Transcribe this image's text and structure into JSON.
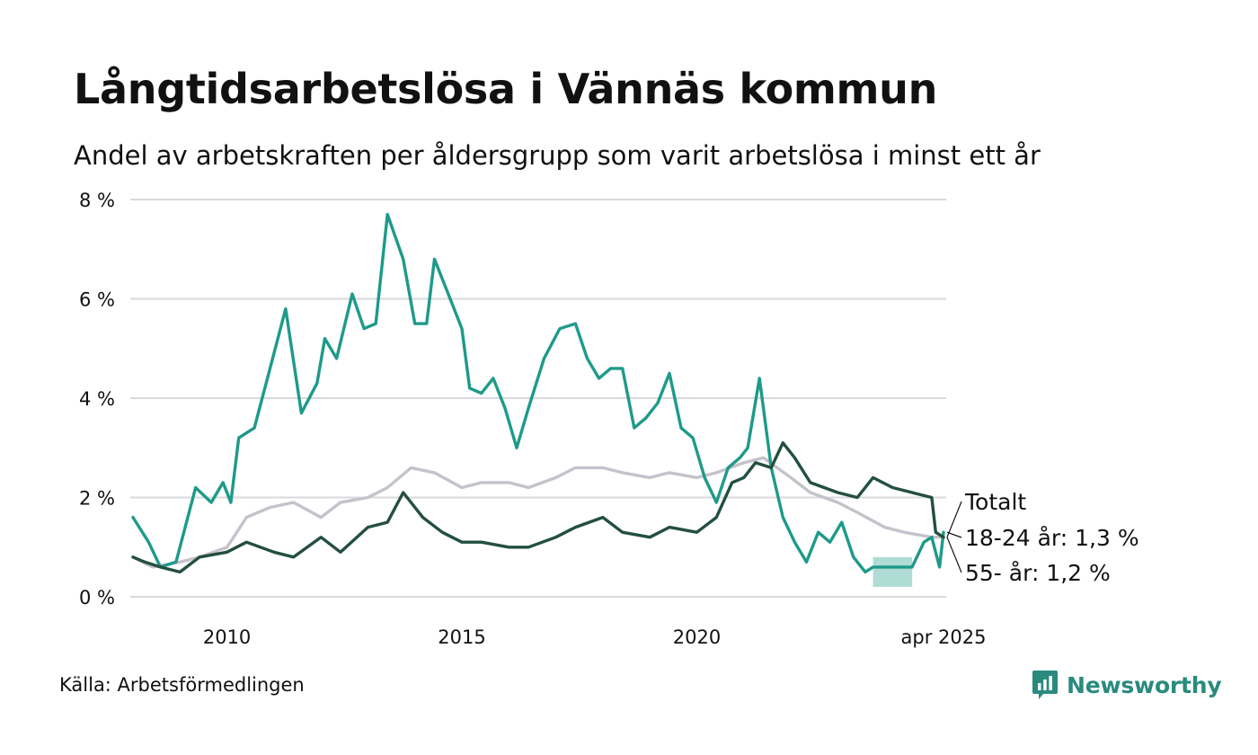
{
  "title": "Långtidsarbetslösa i Vännäs kommun",
  "subtitle": "Andel av arbetskraften per åldersgrupp som varit arbetslösa i minst ett år",
  "source": "Källa: Arbetsförmedlingen",
  "brand": {
    "name": "Newsworthy",
    "icon": "newsworthy-logo-icon",
    "color": "#2a8a7e"
  },
  "chart_data": {
    "type": "line",
    "x_start": "2008-01",
    "x_end": "2025-04",
    "x_ticks": [
      {
        "x": "2010-01",
        "label": "2010"
      },
      {
        "x": "2015-01",
        "label": "2015"
      },
      {
        "x": "2020-01",
        "label": "2020"
      },
      {
        "x": "2025-04",
        "label": "apr 2025"
      }
    ],
    "y_ticks": [
      {
        "value": 0,
        "label": "0 %"
      },
      {
        "value": 2,
        "label": "2 %"
      },
      {
        "value": 4,
        "label": "4 %"
      },
      {
        "value": 6,
        "label": "6 %"
      },
      {
        "value": 8,
        "label": "8 %"
      }
    ],
    "ylim": [
      0,
      8
    ],
    "grid": "horizontal",
    "series": [
      {
        "name": "Totalt",
        "color": "#c6c2cc",
        "end_label": "Totalt",
        "points": [
          [
            "2008-01",
            0.8
          ],
          [
            "2008-06",
            0.6
          ],
          [
            "2009-01",
            0.7
          ],
          [
            "2009-06",
            0.8
          ],
          [
            "2010-01",
            1.0
          ],
          [
            "2010-06",
            1.6
          ],
          [
            "2010-12",
            1.8
          ],
          [
            "2011-06",
            1.9
          ],
          [
            "2012-01",
            1.6
          ],
          [
            "2012-06",
            1.9
          ],
          [
            "2013-01",
            2.0
          ],
          [
            "2013-06",
            2.2
          ],
          [
            "2013-12",
            2.6
          ],
          [
            "2014-06",
            2.5
          ],
          [
            "2015-01",
            2.2
          ],
          [
            "2015-06",
            2.3
          ],
          [
            "2016-01",
            2.3
          ],
          [
            "2016-06",
            2.2
          ],
          [
            "2017-01",
            2.4
          ],
          [
            "2017-06",
            2.6
          ],
          [
            "2018-01",
            2.6
          ],
          [
            "2018-06",
            2.5
          ],
          [
            "2019-01",
            2.4
          ],
          [
            "2019-06",
            2.5
          ],
          [
            "2020-01",
            2.4
          ],
          [
            "2020-06",
            2.5
          ],
          [
            "2021-01",
            2.7
          ],
          [
            "2021-06",
            2.8
          ],
          [
            "2022-01",
            2.4
          ],
          [
            "2022-06",
            2.1
          ],
          [
            "2023-01",
            1.9
          ],
          [
            "2023-06",
            1.7
          ],
          [
            "2024-01",
            1.4
          ],
          [
            "2024-06",
            1.3
          ],
          [
            "2025-01",
            1.2
          ],
          [
            "2025-04",
            1.2
          ]
        ]
      },
      {
        "name": "18-24 år",
        "color": "#1e9a89",
        "end_label": "18-24 år: 1,3 %",
        "band": {
          "from": "2023-10",
          "to": "2024-08",
          "low": 0.2,
          "high": 0.8
        },
        "points": [
          [
            "2008-01",
            1.6
          ],
          [
            "2008-05",
            1.1
          ],
          [
            "2008-08",
            0.6
          ],
          [
            "2008-12",
            0.7
          ],
          [
            "2009-02",
            1.3
          ],
          [
            "2009-05",
            2.2
          ],
          [
            "2009-09",
            1.9
          ],
          [
            "2009-12",
            2.3
          ],
          [
            "2010-02",
            1.9
          ],
          [
            "2010-04",
            3.2
          ],
          [
            "2010-08",
            3.4
          ],
          [
            "2010-12",
            4.6
          ],
          [
            "2011-04",
            5.8
          ],
          [
            "2011-08",
            3.7
          ],
          [
            "2011-12",
            4.3
          ],
          [
            "2012-02",
            5.2
          ],
          [
            "2012-05",
            4.8
          ],
          [
            "2012-09",
            6.1
          ],
          [
            "2012-12",
            5.4
          ],
          [
            "2013-03",
            5.5
          ],
          [
            "2013-06",
            7.7
          ],
          [
            "2013-10",
            6.8
          ],
          [
            "2014-01",
            5.5
          ],
          [
            "2014-04",
            5.5
          ],
          [
            "2014-06",
            6.8
          ],
          [
            "2014-10",
            6.0
          ],
          [
            "2015-01",
            5.4
          ],
          [
            "2015-03",
            4.2
          ],
          [
            "2015-06",
            4.1
          ],
          [
            "2015-09",
            4.4
          ],
          [
            "2015-12",
            3.8
          ],
          [
            "2016-03",
            3.0
          ],
          [
            "2016-06",
            3.8
          ],
          [
            "2016-10",
            4.8
          ],
          [
            "2017-02",
            5.4
          ],
          [
            "2017-06",
            5.5
          ],
          [
            "2017-09",
            4.8
          ],
          [
            "2017-12",
            4.4
          ],
          [
            "2018-03",
            4.6
          ],
          [
            "2018-06",
            4.6
          ],
          [
            "2018-09",
            3.4
          ],
          [
            "2018-12",
            3.6
          ],
          [
            "2019-03",
            3.9
          ],
          [
            "2019-06",
            4.5
          ],
          [
            "2019-09",
            3.4
          ],
          [
            "2019-12",
            3.2
          ],
          [
            "2020-03",
            2.4
          ],
          [
            "2020-06",
            1.9
          ],
          [
            "2020-09",
            2.6
          ],
          [
            "2020-12",
            2.8
          ],
          [
            "2021-02",
            3.0
          ],
          [
            "2021-05",
            4.4
          ],
          [
            "2021-08",
            2.6
          ],
          [
            "2021-11",
            1.6
          ],
          [
            "2022-02",
            1.1
          ],
          [
            "2022-05",
            0.7
          ],
          [
            "2022-08",
            1.3
          ],
          [
            "2022-11",
            1.1
          ],
          [
            "2023-02",
            1.5
          ],
          [
            "2023-05",
            0.8
          ],
          [
            "2023-08",
            0.5
          ],
          [
            "2023-10",
            0.6
          ],
          [
            "2024-08",
            0.6
          ],
          [
            "2024-11",
            1.1
          ],
          [
            "2025-01",
            1.2
          ],
          [
            "2025-03",
            0.6
          ],
          [
            "2025-04",
            1.3
          ]
        ]
      },
      {
        "name": "55- år",
        "color": "#234f3f",
        "end_label": "55- år: 1,2 %",
        "points": [
          [
            "2008-01",
            0.8
          ],
          [
            "2008-04",
            0.7
          ],
          [
            "2008-08",
            0.6
          ],
          [
            "2009-01",
            0.5
          ],
          [
            "2009-06",
            0.8
          ],
          [
            "2010-01",
            0.9
          ],
          [
            "2010-06",
            1.1
          ],
          [
            "2011-01",
            0.9
          ],
          [
            "2011-06",
            0.8
          ],
          [
            "2012-01",
            1.2
          ],
          [
            "2012-06",
            0.9
          ],
          [
            "2013-01",
            1.4
          ],
          [
            "2013-06",
            1.5
          ],
          [
            "2013-10",
            2.1
          ],
          [
            "2014-03",
            1.6
          ],
          [
            "2014-08",
            1.3
          ],
          [
            "2015-01",
            1.1
          ],
          [
            "2015-06",
            1.1
          ],
          [
            "2016-01",
            1.0
          ],
          [
            "2016-06",
            1.0
          ],
          [
            "2017-01",
            1.2
          ],
          [
            "2017-06",
            1.4
          ],
          [
            "2018-01",
            1.6
          ],
          [
            "2018-06",
            1.3
          ],
          [
            "2019-01",
            1.2
          ],
          [
            "2019-06",
            1.4
          ],
          [
            "2020-01",
            1.3
          ],
          [
            "2020-06",
            1.6
          ],
          [
            "2020-10",
            2.3
          ],
          [
            "2021-01",
            2.4
          ],
          [
            "2021-04",
            2.7
          ],
          [
            "2021-08",
            2.6
          ],
          [
            "2021-11",
            3.1
          ],
          [
            "2022-02",
            2.8
          ],
          [
            "2022-06",
            2.3
          ],
          [
            "2023-01",
            2.1
          ],
          [
            "2023-06",
            2.0
          ],
          [
            "2023-10",
            2.4
          ],
          [
            "2024-03",
            2.2
          ],
          [
            "2024-08",
            2.1
          ],
          [
            "2025-01",
            2.0
          ],
          [
            "2025-02",
            1.3
          ],
          [
            "2025-04",
            1.2
          ]
        ]
      }
    ]
  }
}
